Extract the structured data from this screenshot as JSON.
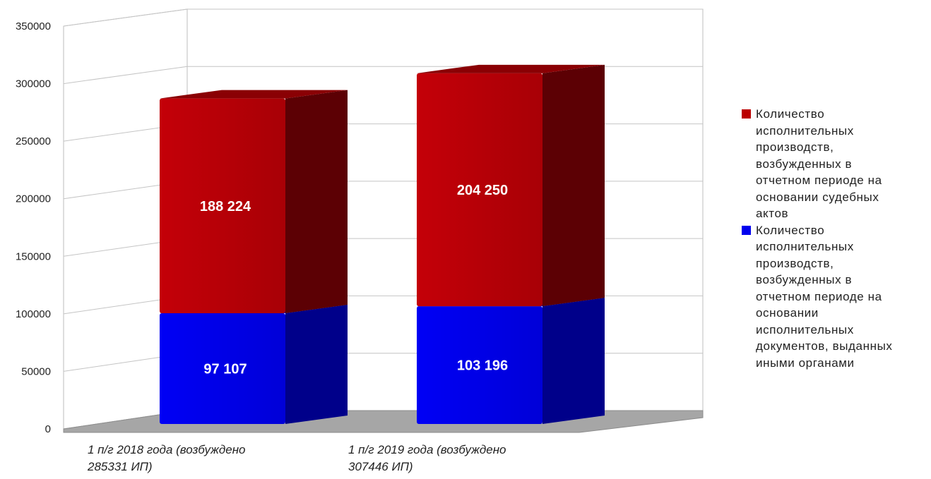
{
  "chart_data": {
    "type": "bar",
    "stacked": true,
    "three_d": true,
    "categories": [
      "1 п/г 2018 года  (возбуждено 285331 ИП)",
      "1 п/г 2019 года (возбуждено 307446 ИП)"
    ],
    "category_lines": [
      [
        "1 п/г 2018 года  (возбуждено",
        "285331 ИП)"
      ],
      [
        "1 п/г 2019 года (возбуждено",
        "307446 ИП)"
      ]
    ],
    "series": [
      {
        "name": "Количество исполнительных производств, возбужденных в отчетном периоде на основании исполнительных документов, выданных иными органами",
        "values": [
          97107,
          103196
        ],
        "labels": [
          "97 107",
          "103 196"
        ],
        "color": "#0000ee"
      },
      {
        "name": "Количество исполнительных производств, возбужденных в отчетном периоде на основании судебных актов",
        "values": [
          188224,
          204250
        ],
        "labels": [
          "188 224",
          "204 250"
        ],
        "color": "#bb0000"
      }
    ],
    "ylim": [
      0,
      350000
    ],
    "yticks": [
      "0",
      "50000",
      "100000",
      "150000",
      "200000",
      "250000",
      "300000",
      "350000"
    ],
    "grid": true,
    "legend_position": "right",
    "legend": [
      {
        "lines": [
          "Количество",
          "исполнительных",
          "производств,",
          "возбужденных в",
          "отчетном периоде на",
          "основании судебных",
          "актов"
        ],
        "color": "#bb0000"
      },
      {
        "lines": [
          "Количество",
          "исполнительных",
          "производств,",
          "возбужденных в",
          "отчетном периоде на",
          "основании",
          "исполнительных",
          "документов, выданных",
          "иными органами"
        ],
        "color": "#0000ee"
      }
    ]
  }
}
